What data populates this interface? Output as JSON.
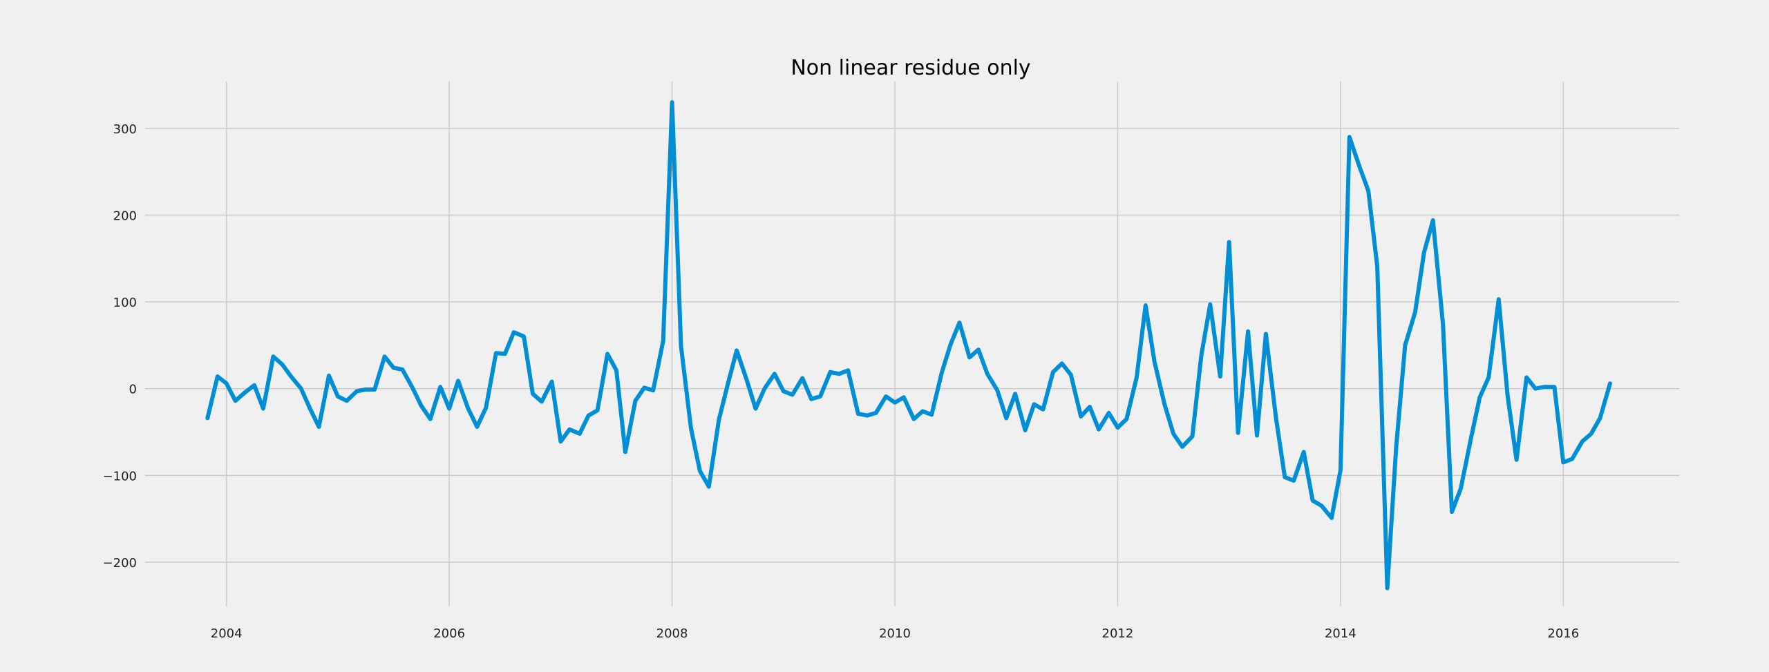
{
  "chart_data": {
    "type": "line",
    "title": "Non linear residue only",
    "xlabel": "",
    "ylabel": "",
    "xlim": [
      2003.27,
      2017.04
    ],
    "ylim": [
      -251,
      354
    ],
    "x_ticks": [
      2004,
      2006,
      2008,
      2010,
      2012,
      2014,
      2016
    ],
    "x_tick_labels": [
      "2004",
      "2006",
      "2008",
      "2010",
      "2012",
      "2014",
      "2016"
    ],
    "y_ticks": [
      300,
      200,
      100,
      0,
      -100,
      -200
    ],
    "y_tick_labels": [
      "300",
      "200",
      "100",
      "0",
      "−100",
      "−200"
    ],
    "grid": true,
    "legend": "none",
    "colors": {
      "background": "#f0f0f0",
      "grid": "#cbcbcb",
      "series": "#008fd5"
    },
    "series": [
      {
        "color": "#008fd5",
        "x": [
          2003.83,
          2003.92,
          2004.0,
          2004.08,
          2004.17,
          2004.25,
          2004.33,
          2004.42,
          2004.5,
          2004.58,
          2004.67,
          2004.75,
          2004.83,
          2004.92,
          2005.0,
          2005.08,
          2005.17,
          2005.25,
          2005.33,
          2005.42,
          2005.5,
          2005.58,
          2005.67,
          2005.75,
          2005.83,
          2005.92,
          2006.0,
          2006.08,
          2006.17,
          2006.25,
          2006.33,
          2006.42,
          2006.5,
          2006.58,
          2006.67,
          2006.75,
          2006.83,
          2006.92,
          2007.0,
          2007.08,
          2007.17,
          2007.25,
          2007.33,
          2007.42,
          2007.5,
          2007.58,
          2007.67,
          2007.75,
          2007.83,
          2007.92,
          2008.0,
          2008.08,
          2008.17,
          2008.25,
          2008.33,
          2008.42,
          2008.5,
          2008.58,
          2008.67,
          2008.75,
          2008.83,
          2008.92,
          2009.0,
          2009.08,
          2009.17,
          2009.25,
          2009.33,
          2009.42,
          2009.5,
          2009.58,
          2009.67,
          2009.75,
          2009.83,
          2009.92,
          2010.0,
          2010.08,
          2010.17,
          2010.25,
          2010.33,
          2010.42,
          2010.5,
          2010.58,
          2010.67,
          2010.75,
          2010.83,
          2010.92,
          2011.0,
          2011.08,
          2011.17,
          2011.25,
          2011.33,
          2011.42,
          2011.5,
          2011.58,
          2011.67,
          2011.75,
          2011.83,
          2011.92,
          2012.0,
          2012.08,
          2012.17,
          2012.25,
          2012.33,
          2012.42,
          2012.5,
          2012.58,
          2012.67,
          2012.75,
          2012.83,
          2012.92,
          2013.0,
          2013.08,
          2013.17,
          2013.25,
          2013.33,
          2013.42,
          2013.5,
          2013.58,
          2013.67,
          2013.75,
          2013.83,
          2013.92,
          2014.0,
          2014.08,
          2014.17,
          2014.25,
          2014.33,
          2014.42,
          2014.5,
          2014.58,
          2014.67,
          2014.75,
          2014.83,
          2014.92,
          2015.0,
          2015.08,
          2015.17,
          2015.25,
          2015.33,
          2015.42,
          2015.5,
          2015.58,
          2015.67,
          2015.75,
          2015.83,
          2015.92,
          2016.0,
          2016.08,
          2016.17,
          2016.25,
          2016.33,
          2016.42
        ],
        "values": [
          -34,
          14,
          6,
          -14,
          -4,
          4,
          -23,
          37,
          28,
          14,
          0,
          -23,
          -44,
          15,
          -9,
          -14,
          -3,
          -1,
          -1,
          37,
          24,
          22,
          1,
          -20,
          -35,
          2,
          -23,
          9,
          -23,
          -44,
          -22,
          41,
          40,
          65,
          60,
          -6,
          -15,
          8,
          -61,
          -47,
          -52,
          -31,
          -25,
          40,
          21,
          -73,
          -14,
          1,
          -2,
          55,
          330,
          49,
          -46,
          -95,
          -113,
          -36,
          5,
          44,
          10,
          -23,
          0,
          17,
          -3,
          -7,
          12,
          -12,
          -9,
          19,
          17,
          21,
          -29,
          -31,
          -28,
          -9,
          -16,
          -10,
          -35,
          -26,
          -30,
          18,
          51,
          76,
          36,
          45,
          17,
          -2,
          -34,
          -6,
          -48,
          -18,
          -24,
          19,
          29,
          16,
          -32,
          -21,
          -47,
          -28,
          -45,
          -35,
          13,
          96,
          31,
          -18,
          -52,
          -67,
          -55,
          38,
          97,
          14,
          169,
          -51,
          66,
          -54,
          63,
          -33,
          -102,
          -106,
          -73,
          -129,
          -135,
          -149,
          -94,
          290,
          256,
          228,
          141,
          -230,
          -67,
          50,
          88,
          157,
          194,
          74,
          -142,
          -115,
          -58,
          -10,
          13,
          103,
          -8,
          -82,
          13,
          0,
          2,
          2,
          -85,
          -81,
          -61,
          -52,
          -34,
          6
        ]
      }
    ]
  }
}
